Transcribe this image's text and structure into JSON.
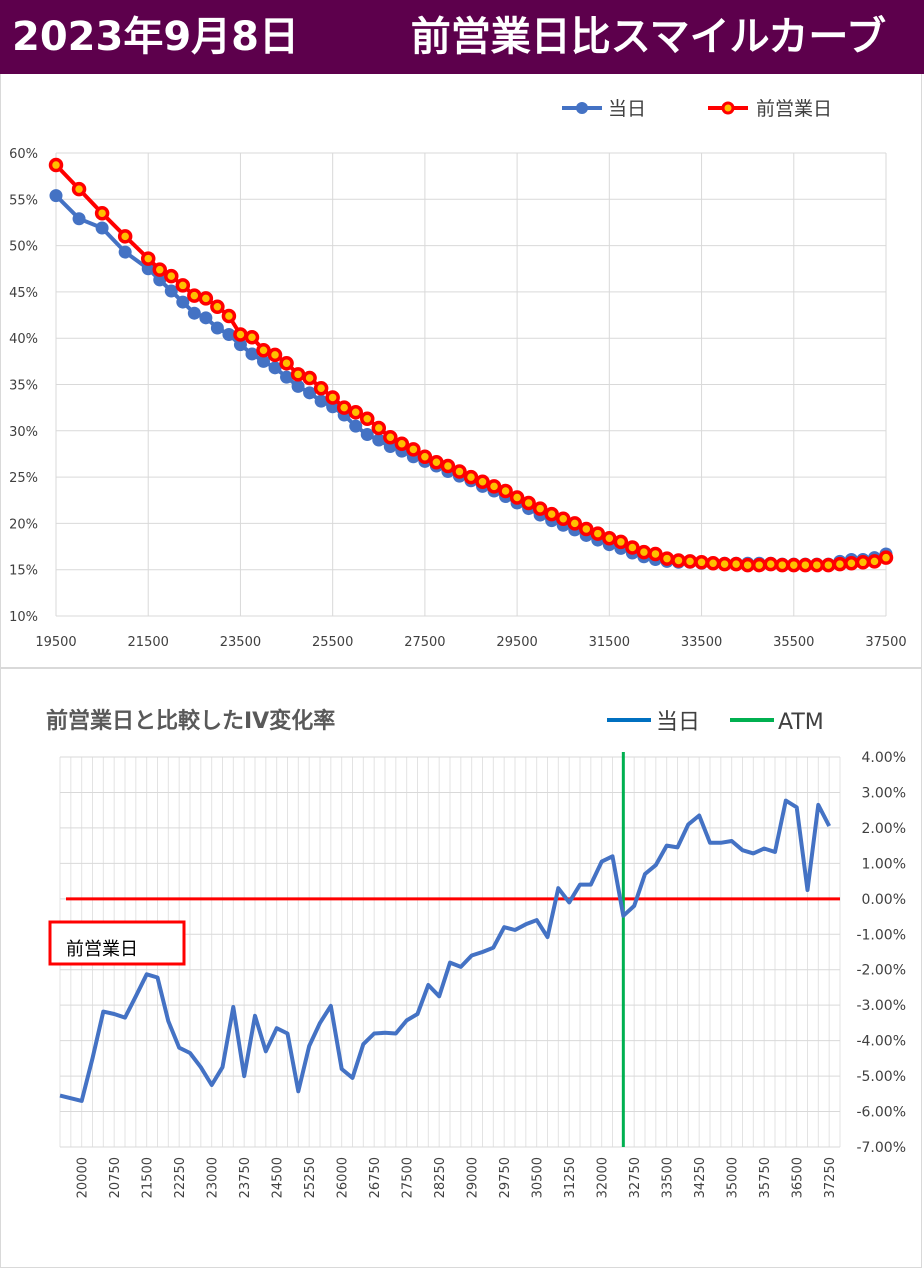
{
  "header": {
    "date": "2023年9月8日",
    "title": "前営業日比スマイルカーブ"
  },
  "colors": {
    "header_bg": "#5d004c",
    "today": "#4472c4",
    "prev": "#ff0000",
    "change_line": "#4472c4",
    "atm": "#00b050",
    "zero_line": "#ff0000",
    "grid": "#d9d9d9"
  },
  "chart_data": [
    {
      "type": "line",
      "title": "",
      "legend": {
        "position": "top-right",
        "entries": [
          "当日",
          "前営業日"
        ]
      },
      "xlim": [
        19500,
        37500
      ],
      "ylim": [
        0.1,
        0.6
      ],
      "x_ticks": [
        "19500",
        "21500",
        "23500",
        "25500",
        "27500",
        "29500",
        "31500",
        "33500",
        "35500",
        "37500"
      ],
      "y_ticks": [
        "10%",
        "15%",
        "20%",
        "25%",
        "30%",
        "35%",
        "40%",
        "45%",
        "50%",
        "55%",
        "60%"
      ],
      "grid": true,
      "series": [
        {
          "name": "当日",
          "x": [
            19500,
            20000,
            20500,
            21000,
            21500,
            21750,
            22000,
            22250,
            22500,
            22750,
            23000,
            23250,
            23500,
            23750,
            24000,
            24250,
            24500,
            24750,
            25000,
            25250,
            25500,
            25750,
            26000,
            26250,
            26500,
            26750,
            27000,
            27250,
            27500,
            27750,
            28000,
            28250,
            28500,
            28750,
            29000,
            29250,
            29500,
            29750,
            30000,
            30250,
            30500,
            30750,
            31000,
            31250,
            31500,
            31750,
            32000,
            32250,
            32500,
            32750,
            33000,
            33250,
            33500,
            33750,
            34000,
            34250,
            34500,
            34750,
            35000,
            35250,
            35500,
            35750,
            36000,
            36250,
            36500,
            36750,
            37000,
            37250,
            37500
          ],
          "values": [
            0.554,
            0.529,
            0.519,
            0.493,
            0.475,
            0.463,
            0.451,
            0.439,
            0.427,
            0.422,
            0.411,
            0.404,
            0.393,
            0.383,
            0.375,
            0.368,
            0.358,
            0.348,
            0.341,
            0.332,
            0.326,
            0.317,
            0.305,
            0.296,
            0.29,
            0.283,
            0.278,
            0.272,
            0.267,
            0.262,
            0.256,
            0.251,
            0.246,
            0.24,
            0.235,
            0.229,
            0.222,
            0.216,
            0.209,
            0.203,
            0.198,
            0.193,
            0.187,
            0.182,
            0.177,
            0.173,
            0.168,
            0.164,
            0.161,
            0.159,
            0.158,
            0.158,
            0.157,
            0.157,
            0.157,
            0.157,
            0.157,
            0.157,
            0.157,
            0.156,
            0.156,
            0.156,
            0.156,
            0.156,
            0.159,
            0.161,
            0.161,
            0.163,
            0.167
          ]
        },
        {
          "name": "前営業日",
          "x": [
            19500,
            20000,
            20500,
            21000,
            21500,
            21750,
            22000,
            22250,
            22500,
            22750,
            23000,
            23250,
            23500,
            23750,
            24000,
            24250,
            24500,
            24750,
            25000,
            25250,
            25500,
            25750,
            26000,
            26250,
            26500,
            26750,
            27000,
            27250,
            27500,
            27750,
            28000,
            28250,
            28500,
            28750,
            29000,
            29250,
            29500,
            29750,
            30000,
            30250,
            30500,
            30750,
            31000,
            31250,
            31500,
            31750,
            32000,
            32250,
            32500,
            32750,
            33000,
            33250,
            33500,
            33750,
            34000,
            34250,
            34500,
            34750,
            35000,
            35250,
            35500,
            35750,
            36000,
            36250,
            36500,
            36750,
            37000,
            37250,
            37500
          ],
          "values": [
            0.587,
            0.561,
            0.535,
            0.51,
            0.486,
            0.474,
            0.467,
            0.457,
            0.446,
            0.443,
            0.434,
            0.424,
            0.404,
            0.401,
            0.387,
            0.382,
            0.373,
            0.361,
            0.357,
            0.346,
            0.336,
            0.325,
            0.32,
            0.313,
            0.303,
            0.293,
            0.286,
            0.28,
            0.272,
            0.266,
            0.262,
            0.256,
            0.25,
            0.245,
            0.24,
            0.235,
            0.228,
            0.222,
            0.216,
            0.21,
            0.205,
            0.2,
            0.194,
            0.189,
            0.184,
            0.18,
            0.174,
            0.169,
            0.167,
            0.162,
            0.16,
            0.159,
            0.158,
            0.157,
            0.156,
            0.156,
            0.155,
            0.155,
            0.156,
            0.155,
            0.155,
            0.155,
            0.155,
            0.155,
            0.156,
            0.157,
            0.158,
            0.159,
            0.163
          ]
        }
      ]
    },
    {
      "type": "line",
      "title": "前営業日と比較したIV変化率",
      "legend": {
        "position": "top-right",
        "entries": [
          "当日",
          "ATM"
        ]
      },
      "y_axis_side": "right",
      "ylim": [
        -0.07,
        0.04
      ],
      "y_ticks": [
        "4.00%",
        "3.00%",
        "2.00%",
        "1.00%",
        "0.00%",
        "-1.00%",
        "-2.00%",
        "-3.00%",
        "-4.00%",
        "-5.00%",
        "-6.00%",
        "-7.00%"
      ],
      "x_ticks": [
        "20000",
        "20750",
        "21500",
        "22250",
        "23000",
        "23750",
        "24500",
        "25250",
        "26000",
        "26750",
        "27500",
        "28250",
        "29000",
        "29750",
        "30500",
        "31250",
        "32000",
        "32750",
        "33500",
        "34250",
        "35000",
        "35750",
        "36500",
        "37250"
      ],
      "atm_x": 32500,
      "atm_label": "ATM",
      "zero_label": "前営業日",
      "series": [
        {
          "name": "当日",
          "x": [
            19500,
            20000,
            20250,
            20500,
            20750,
            21000,
            21250,
            21500,
            21750,
            22000,
            22250,
            22500,
            22750,
            23000,
            23250,
            23500,
            23750,
            24000,
            24250,
            24500,
            24750,
            25000,
            25250,
            25500,
            25750,
            26000,
            26250,
            26500,
            26750,
            27000,
            27250,
            27500,
            27750,
            28000,
            28250,
            28500,
            28750,
            29000,
            29250,
            29500,
            29750,
            30000,
            30250,
            30500,
            30750,
            31000,
            31250,
            31500,
            31750,
            32000,
            32250,
            32500,
            32750,
            33000,
            33250,
            33500,
            33750,
            34000,
            34250,
            34500,
            34750,
            35000,
            35250,
            35500,
            35750,
            36000,
            36250,
            36500,
            36750,
            37000,
            37250
          ],
          "values": [
            -0.0555,
            -0.057,
            -0.045,
            -0.0318,
            -0.0325,
            -0.0335,
            -0.0275,
            -0.0213,
            -0.0222,
            -0.0345,
            -0.042,
            -0.0435,
            -0.0475,
            -0.0525,
            -0.0475,
            -0.0305,
            -0.05,
            -0.033,
            -0.043,
            -0.0365,
            -0.038,
            -0.0543,
            -0.0415,
            -0.035,
            -0.0302,
            -0.048,
            -0.0505,
            -0.041,
            -0.038,
            -0.0378,
            -0.038,
            -0.0343,
            -0.0325,
            -0.0243,
            -0.0275,
            -0.018,
            -0.0192,
            -0.016,
            -0.015,
            -0.0138,
            -0.008,
            -0.0088,
            -0.0072,
            -0.006,
            -0.0108,
            0.003,
            -0.001,
            0.004,
            0.004,
            0.0105,
            0.012,
            -0.0048,
            -0.002,
            0.007,
            0.0095,
            0.015,
            0.0145,
            0.021,
            0.0235,
            0.0158,
            0.0158,
            0.0163,
            0.0137,
            0.0128,
            0.0142,
            0.0132,
            0.0277,
            0.0258,
            0.0025,
            0.0265,
            0.0205
          ]
        }
      ]
    }
  ]
}
